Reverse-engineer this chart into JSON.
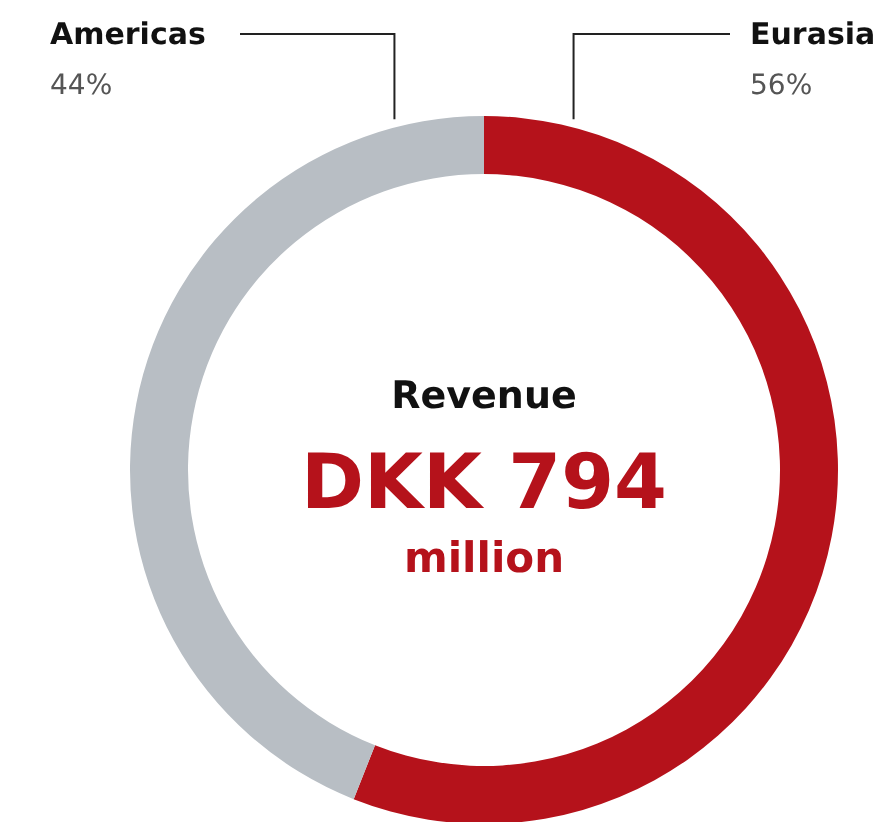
{
  "chart_data": {
    "type": "donut",
    "title": "Revenue",
    "annotations": [
      "DKK 794",
      "million"
    ],
    "categories": [
      "Americas",
      "Eurasia"
    ],
    "values": [
      44,
      56
    ],
    "value_labels": [
      "44%",
      "56%"
    ],
    "colors": [
      "#b8bec4",
      "#b5121b"
    ]
  }
}
